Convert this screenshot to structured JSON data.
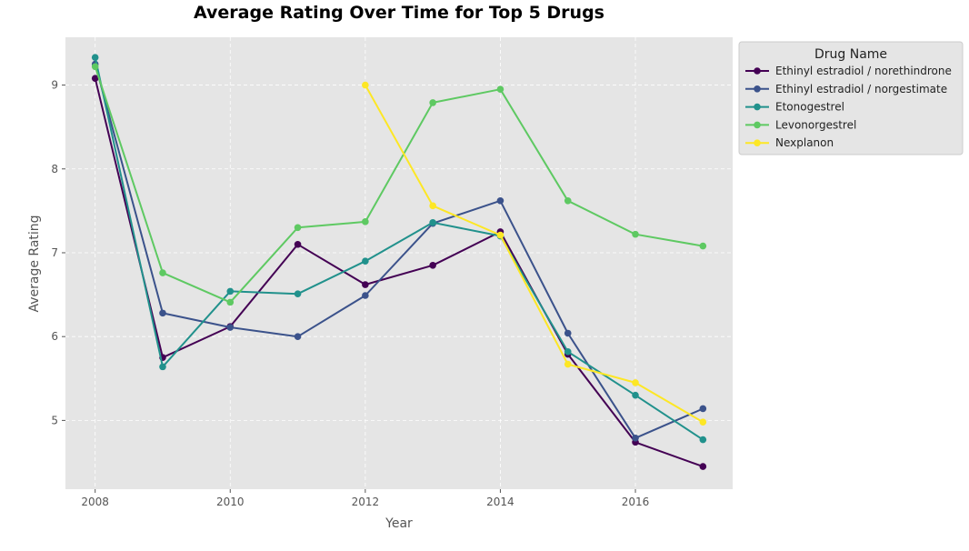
{
  "chart_data": {
    "type": "line",
    "title": "Average Rating Over Time for Top 5 Drugs",
    "xlabel": "Year",
    "ylabel": "Average Rating",
    "xlim": [
      2007.56,
      2017.44
    ],
    "ylim": [
      4.18,
      9.57
    ],
    "x_ticks": [
      2008,
      2010,
      2012,
      2014,
      2016
    ],
    "y_ticks": [
      5,
      6,
      7,
      8,
      9
    ],
    "grid": true,
    "legend": {
      "title": "Drug Name",
      "placement": "upper right, outside plot"
    },
    "series": [
      {
        "name": "Ethinyl estradiol / norethindrone",
        "color": "#440154",
        "points": [
          [
            2008,
            9.08
          ],
          [
            2009,
            5.75
          ],
          [
            2010,
            6.12
          ],
          [
            2011,
            7.1
          ],
          [
            2012,
            6.62
          ],
          [
            2013,
            6.85
          ],
          [
            2014,
            7.25
          ],
          [
            2015,
            5.79
          ],
          [
            2016,
            4.74
          ],
          [
            2017,
            4.45
          ]
        ]
      },
      {
        "name": "Ethinyl estradiol / norgestimate",
        "color": "#3b528b",
        "points": [
          [
            2008,
            9.25
          ],
          [
            2009,
            6.28
          ],
          [
            2010,
            6.11
          ],
          [
            2011,
            6.0
          ],
          [
            2012,
            6.49
          ],
          [
            2013,
            7.35
          ],
          [
            2014,
            7.62
          ],
          [
            2015,
            6.04
          ],
          [
            2016,
            4.79
          ],
          [
            2017,
            5.14
          ]
        ]
      },
      {
        "name": "Etonogestrel",
        "color": "#21918c",
        "points": [
          [
            2008,
            9.33
          ],
          [
            2009,
            5.64
          ],
          [
            2010,
            6.54
          ],
          [
            2011,
            6.51
          ],
          [
            2012,
            6.9
          ],
          [
            2013,
            7.36
          ],
          [
            2014,
            7.2
          ],
          [
            2015,
            5.82
          ],
          [
            2016,
            5.3
          ],
          [
            2017,
            4.77
          ]
        ]
      },
      {
        "name": "Levonorgestrel",
        "color": "#5ec962",
        "points": [
          [
            2008,
            9.22
          ],
          [
            2009,
            6.76
          ],
          [
            2010,
            6.41
          ],
          [
            2011,
            7.3
          ],
          [
            2012,
            7.37
          ],
          [
            2013,
            8.79
          ],
          [
            2014,
            8.95
          ],
          [
            2015,
            7.62
          ],
          [
            2016,
            7.22
          ],
          [
            2017,
            7.08
          ]
        ]
      },
      {
        "name": "Nexplanon",
        "color": "#fde725",
        "points": [
          [
            2012,
            9.0
          ],
          [
            2013,
            7.56
          ],
          [
            2014,
            7.21
          ],
          [
            2015,
            5.67
          ],
          [
            2016,
            5.45
          ],
          [
            2017,
            4.98
          ]
        ]
      }
    ]
  }
}
